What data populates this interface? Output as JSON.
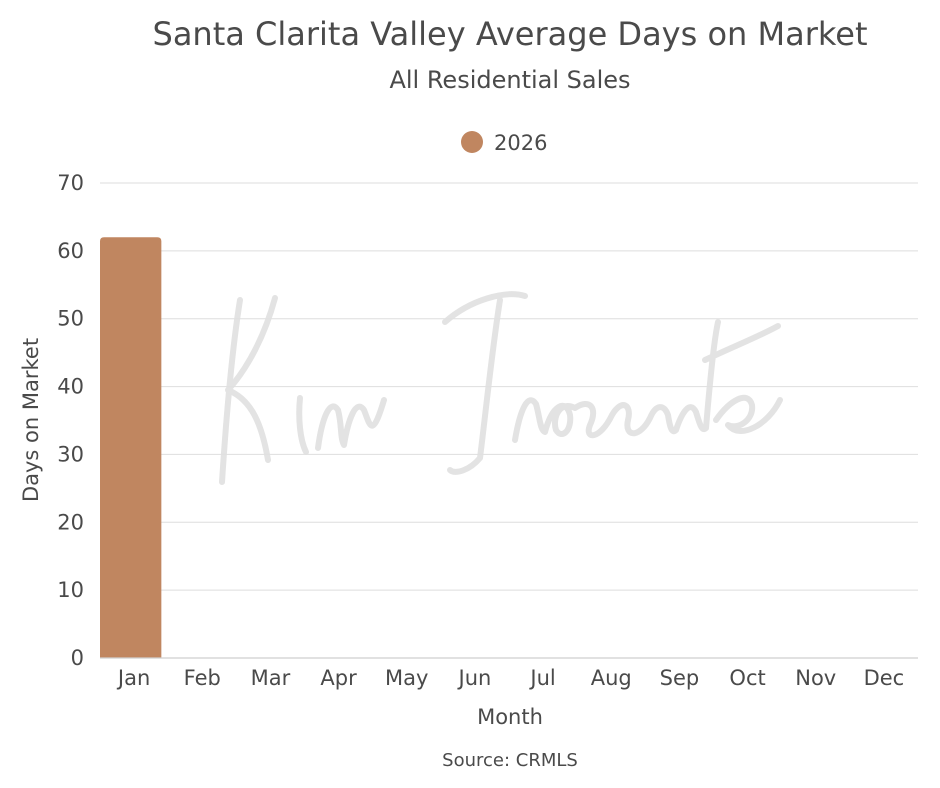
{
  "chart_data": {
    "type": "bar",
    "title": "Santa Clarita Valley Average Days on Market",
    "subtitle": "All Residential Sales",
    "xlabel": "Month",
    "ylabel": "Days on Market",
    "categories": [
      "Jan",
      "Feb",
      "Mar",
      "Apr",
      "May",
      "Jun",
      "Jul",
      "Aug",
      "Sep",
      "Oct",
      "Nov",
      "Dec"
    ],
    "series": [
      {
        "name": "2026",
        "color": "#c08660",
        "values": [
          62,
          null,
          null,
          null,
          null,
          null,
          null,
          null,
          null,
          null,
          null,
          null
        ]
      }
    ],
    "ylim": [
      0,
      70
    ],
    "yticks": [
      0,
      10,
      20,
      30,
      40,
      50,
      60,
      70
    ],
    "grid": true,
    "legend_position": "top-center",
    "source": "Source: CRMLS",
    "watermark": "Kim Inocente"
  }
}
